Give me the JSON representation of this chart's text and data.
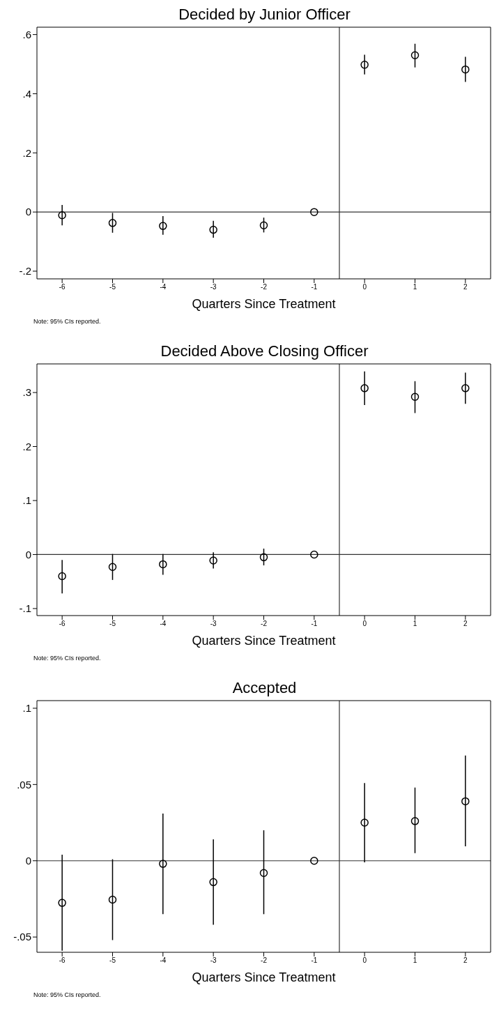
{
  "chart_data": [
    {
      "type": "scatter",
      "title": "Decided by Junior Officer",
      "xlabel": "Quarters Since Treatment",
      "annotations": [
        "Note: 95% CIs reported."
      ],
      "marker": "circle",
      "x": [
        -6,
        -5,
        -4,
        -3,
        -2,
        -1,
        0,
        1,
        2
      ],
      "series": [
        {
          "color": "#000000",
          "values": [
            -0.011,
            -0.037,
            -0.047,
            -0.06,
            -0.045,
            0,
            0.498,
            0.53,
            0.482
          ],
          "errors": [
            [
              -0.045,
              0.024
            ],
            [
              -0.07,
              -0.003
            ],
            [
              -0.077,
              -0.014
            ],
            [
              -0.087,
              -0.03
            ],
            [
              -0.069,
              -0.019
            ],
            null,
            [
              0.465,
              0.532
            ],
            [
              0.489,
              0.569
            ],
            [
              0.44,
              0.525
            ]
          ]
        }
      ],
      "xlim": [
        -6.5,
        2.5
      ],
      "xticks": [
        -6,
        -5,
        -4,
        -3,
        -2,
        -1,
        0,
        1,
        2
      ],
      "ylim": [
        -0.226,
        0.625
      ],
      "yticks": [
        {
          "value": -0.2,
          "label": "-.2"
        },
        {
          "value": 0,
          "label": "0"
        },
        {
          "value": 0.2,
          "label": ".2"
        },
        {
          "value": 0.4,
          "label": ".4"
        },
        {
          "value": 0.6,
          "label": ".6"
        }
      ],
      "ref_lines": [
        {
          "axis": "y",
          "value": 0,
          "color": "#333333"
        },
        {
          "axis": "x",
          "value": -0.5,
          "color": "#333333"
        }
      ]
    },
    {
      "type": "scatter",
      "title": "Decided Above Closing Officer",
      "xlabel": "Quarters Since Treatment",
      "annotations": [
        "Note: 95% CIs reported."
      ],
      "marker": "circle",
      "x": [
        -6,
        -5,
        -4,
        -3,
        -2,
        -1,
        0,
        1,
        2
      ],
      "series": [
        {
          "color": "#000000",
          "values": [
            -0.04,
            -0.023,
            -0.018,
            -0.011,
            -0.005,
            0,
            0.308,
            0.292,
            0.308
          ],
          "errors": [
            [
              -0.072,
              -0.01
            ],
            [
              -0.047,
              0.001
            ],
            [
              -0.0375,
              0.001
            ],
            [
              -0.026,
              0.004
            ],
            [
              -0.02,
              0.011
            ],
            null,
            [
              0.277,
              0.339
            ],
            [
              0.262,
              0.321
            ],
            [
              0.279,
              0.337
            ]
          ]
        }
      ],
      "xlim": [
        -6.5,
        2.5
      ],
      "xticks": [
        -6,
        -5,
        -4,
        -3,
        -2,
        -1,
        0,
        1,
        2
      ],
      "ylim": [
        -0.113,
        0.353
      ],
      "yticks": [
        {
          "value": -0.1,
          "label": "-.1"
        },
        {
          "value": 0,
          "label": "0"
        },
        {
          "value": 0.1,
          "label": ".1"
        },
        {
          "value": 0.2,
          "label": ".2"
        },
        {
          "value": 0.3,
          "label": ".3"
        }
      ],
      "ref_lines": [
        {
          "axis": "y",
          "value": 0,
          "color": "#333333"
        },
        {
          "axis": "x",
          "value": -0.5,
          "color": "#333333"
        }
      ]
    },
    {
      "type": "scatter",
      "title": "Accepted",
      "xlabel": "Quarters Since Treatment",
      "annotations": [
        "Note: 95% CIs reported."
      ],
      "marker": "circle",
      "x": [
        -6,
        -5,
        -4,
        -3,
        -2,
        -1,
        0,
        1,
        2
      ],
      "series": [
        {
          "color": "#000000",
          "values": [
            -0.0276,
            -0.0255,
            -0.002,
            -0.014,
            -0.008,
            0,
            0.025,
            0.026,
            0.039
          ],
          "errors": [
            [
              -0.059,
              0.004
            ],
            [
              -0.052,
              0.001
            ],
            [
              -0.035,
              0.031
            ],
            [
              -0.042,
              0.014
            ],
            [
              -0.035,
              0.02
            ],
            null,
            [
              -0.001,
              0.051
            ],
            [
              0.005,
              0.048
            ],
            [
              0.0095,
              0.069
            ]
          ]
        }
      ],
      "xlim": [
        -6.5,
        2.5
      ],
      "xticks": [
        -6,
        -5,
        -4,
        -3,
        -2,
        -1,
        0,
        1,
        2
      ],
      "ylim": [
        -0.06,
        0.105
      ],
      "yticks": [
        {
          "value": -0.05,
          "label": "-.05"
        },
        {
          "value": 0,
          "label": "0"
        },
        {
          "value": 0.05,
          "label": ".05"
        },
        {
          "value": 0.1,
          "label": ".1"
        }
      ],
      "ref_lines": [
        {
          "axis": "y",
          "value": 0,
          "color": "#333333"
        },
        {
          "axis": "x",
          "value": -0.5,
          "color": "#333333"
        }
      ]
    }
  ]
}
